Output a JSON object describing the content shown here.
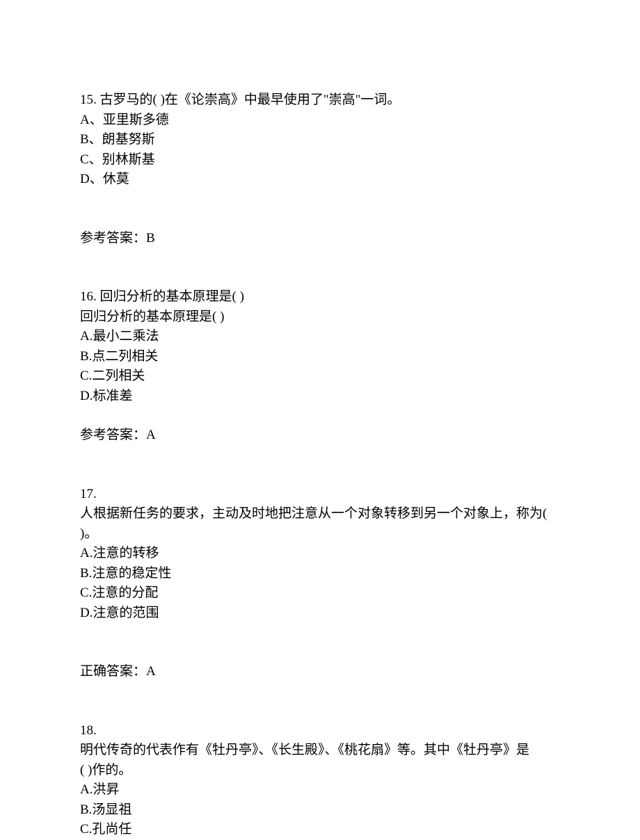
{
  "questions": [
    {
      "number": "15.",
      "stem": "古罗马的( )在《论崇高》中最早使用了\"崇高\"一词。",
      "options": [
        "A、亚里斯多德",
        "B、朗基努斯",
        "C、别林斯基",
        "D、休莫"
      ],
      "answer_label": "参考答案：",
      "answer_value": "B"
    },
    {
      "number": "16.",
      "stem": " 回归分析的基本原理是(  )",
      "stem_repeat": "回归分析的基本原理是(  )",
      "options": [
        "A.最小二乘法",
        "B.点二列相关",
        "C.二列相关",
        "D.标准差"
      ],
      "answer_label": "参考答案：",
      "answer_value": "A"
    },
    {
      "number": "17.",
      "stem_line1": "人根据新任务的要求，主动及时地把注意从一个对象转移到另一个对象上，称为(",
      "stem_line2": ")。",
      "options": [
        "A.注意的转移",
        "B.注意的稳定性",
        "C.注意的分配",
        "D.注意的范围"
      ],
      "answer_label": "正确答案：",
      "answer_value": "A"
    },
    {
      "number": "18.",
      "stem_line1": "明代传奇的代表作有《牡丹亭》、《长生殿》、《桃花扇》等。其中《牡丹亭》是",
      "stem_line2": "(  )作的。",
      "options": [
        "A.洪昇",
        "B.汤显祖",
        "C.孔尚任"
      ]
    }
  ]
}
